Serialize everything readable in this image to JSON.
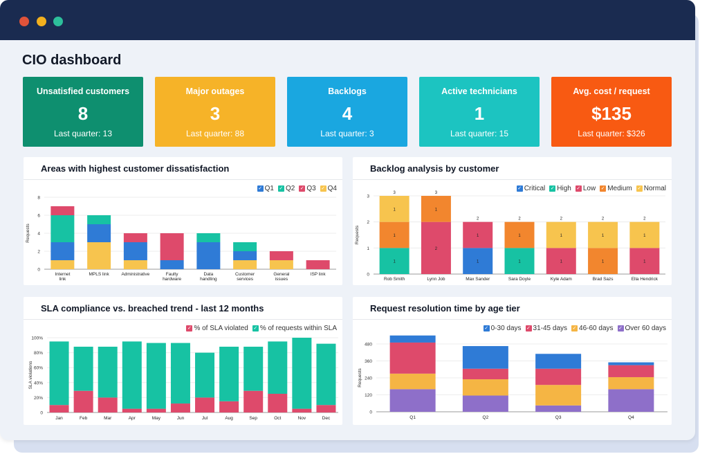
{
  "window": {
    "dots": [
      "#e0533a",
      "#f2b01e",
      "#2dbf9b"
    ]
  },
  "page_title": "CIO dashboard",
  "kpis": [
    {
      "label": "Unsatisfied customers",
      "value": "8",
      "sub": "Last quarter: 13",
      "color": "#0e8f6f"
    },
    {
      "label": "Major outages",
      "value": "3",
      "sub": "Last quarter: 88",
      "color": "#f6b328"
    },
    {
      "label": "Backlogs",
      "value": "4",
      "sub": "Last quarter: 3",
      "color": "#1aa7e0"
    },
    {
      "label": "Active technicians",
      "value": "1",
      "sub": "Last quarter: 15",
      "color": "#1cc4c1"
    },
    {
      "label": "Avg. cost / request",
      "value": "$135",
      "sub": "Last quarter: $326",
      "color": "#f85a12"
    }
  ],
  "charts": {
    "dissatisfaction": {
      "title": "Areas with highest customer dissatisfaction",
      "chart_data": {
        "type": "bar",
        "stacked": true,
        "ylabel": "Requests",
        "ylim": [
          0,
          8
        ],
        "yticks": [
          "0",
          "2",
          "4",
          "6",
          "8"
        ],
        "categories": [
          "Internet link",
          "MPLS link",
          "Administrative",
          "Faulty hardware",
          "Data handling",
          "Customer services",
          "General issues",
          "ISP link"
        ],
        "series": [
          {
            "name": "Q1",
            "color": "#2f7bd6",
            "values": [
              2,
              2,
              2,
              1,
              3,
              1,
              0,
              0
            ]
          },
          {
            "name": "Q2",
            "color": "#17c2a3",
            "values": [
              3,
              1,
              0,
              0,
              1,
              1,
              0,
              0
            ]
          },
          {
            "name": "Q3",
            "color": "#de4a6b",
            "values": [
              1,
              0,
              1,
              3,
              0,
              0,
              1,
              1
            ]
          },
          {
            "name": "Q4",
            "color": "#f7c44e",
            "values": [
              1,
              3,
              1,
              0,
              0,
              1,
              1,
              0
            ]
          }
        ],
        "bar_color_order": [
          "Q4",
          "Q1",
          "Q2",
          "Q3"
        ]
      }
    },
    "backlog": {
      "title": "Backlog analysis by customer",
      "chart_data": {
        "type": "bar",
        "stacked": true,
        "ylabel": "Requests",
        "ylim": [
          0,
          3
        ],
        "yticks": [
          "0",
          "1",
          "2",
          "3"
        ],
        "categories": [
          "Rob Smith",
          "Lynn Job",
          "Max Sander",
          "Sara Doyle",
          "Kyle Adam",
          "Brad Sazs",
          "Ella Hendrick"
        ],
        "series": [
          {
            "name": "Critical",
            "color": "#2f7bd6"
          },
          {
            "name": "High",
            "color": "#17c2a3"
          },
          {
            "name": "Low",
            "color": "#de4a6b"
          },
          {
            "name": "Medium",
            "color": "#f2862e"
          },
          {
            "name": "Normal",
            "color": "#f7c44e"
          }
        ],
        "stacks": [
          {
            "total": "3",
            "segments": [
              {
                "series": "High",
                "value": 1,
                "label": "1"
              },
              {
                "series": "Medium",
                "value": 1,
                "label": "1"
              },
              {
                "series": "Normal",
                "value": 1,
                "label": "1"
              }
            ]
          },
          {
            "total": "3",
            "segments": [
              {
                "series": "Low",
                "value": 2,
                "label": "2"
              },
              {
                "series": "Medium",
                "value": 1,
                "label": "1"
              }
            ]
          },
          {
            "total": "2",
            "segments": [
              {
                "series": "Critical",
                "value": 1,
                "label": "1"
              },
              {
                "series": "Low",
                "value": 1,
                "label": "1"
              }
            ]
          },
          {
            "total": "2",
            "segments": [
              {
                "series": "High",
                "value": 1,
                "label": "1"
              },
              {
                "series": "Medium",
                "value": 1,
                "label": "1"
              }
            ]
          },
          {
            "total": "2",
            "segments": [
              {
                "series": "Low",
                "value": 1,
                "label": "1"
              },
              {
                "series": "Normal",
                "value": 1,
                "label": "1"
              }
            ]
          },
          {
            "total": "2",
            "segments": [
              {
                "series": "Medium",
                "value": 1,
                "label": "1"
              },
              {
                "series": "Normal",
                "value": 1,
                "label": "1"
              }
            ]
          },
          {
            "total": "2",
            "segments": [
              {
                "series": "Low",
                "value": 1,
                "label": "1"
              },
              {
                "series": "Normal",
                "value": 1,
                "label": "1"
              }
            ]
          }
        ]
      }
    },
    "sla": {
      "title": "SLA compliance vs. breached trend - last 12 months",
      "chart_data": {
        "type": "bar",
        "stacked": true,
        "ylabel": "SLA violations",
        "ylim": [
          0,
          100
        ],
        "yticks": [
          "0",
          "20%",
          "40%",
          "60%",
          "80%",
          "100%"
        ],
        "categories": [
          "Jan",
          "Feb",
          "Mar",
          "Apr",
          "May",
          "Jun",
          "Jul",
          "Aug",
          "Sep",
          "Oct",
          "Nov",
          "Dec"
        ],
        "series": [
          {
            "name": "% of SLA violated",
            "color": "#de4a6b",
            "values": [
              10,
              29,
              20,
              5,
              5,
              12,
              20,
              15,
              29,
              25,
              5,
              10
            ]
          },
          {
            "name": "% of requests within SLA",
            "color": "#17c2a3",
            "values": [
              85,
              59,
              68,
              90,
              88,
              81,
              60,
              73,
              59,
              70,
              95,
              82
            ]
          }
        ]
      }
    },
    "resolution": {
      "title": "Request resolution time by age tier",
      "chart_data": {
        "type": "bar",
        "stacked": true,
        "ylabel": "Requests",
        "ylim": [
          0,
          480
        ],
        "yticks": [
          "0",
          "120",
          "240",
          "360",
          "480"
        ],
        "categories": [
          "Q1",
          "Q2",
          "Q3",
          "Q4"
        ],
        "series": [
          {
            "name": "Over 60 days",
            "color": "#8e6fc9",
            "values": [
              160,
              115,
              45,
              160
            ]
          },
          {
            "name": "46-60 days",
            "color": "#f5b544",
            "values": [
              110,
              115,
              145,
              85
            ]
          },
          {
            "name": "31-45 days",
            "color": "#de4a6b",
            "values": [
              220,
              75,
              115,
              85
            ]
          },
          {
            "name": "0-30 days",
            "color": "#2f7bd6",
            "values": [
              50,
              160,
              105,
              20
            ]
          }
        ],
        "legend_order": [
          "0-30 days",
          "31-45 days",
          "46-60 days",
          "Over 60 days"
        ]
      }
    }
  }
}
